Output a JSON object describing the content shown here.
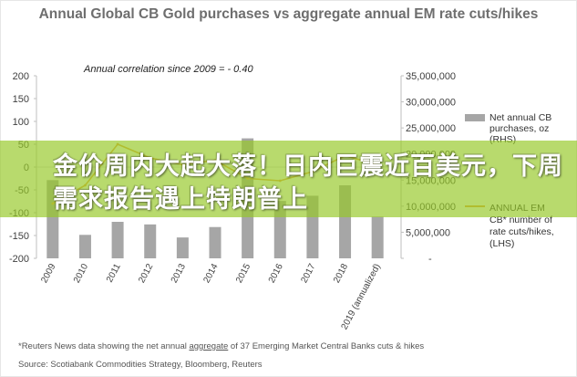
{
  "title": "Annual Global CB Gold purchases vs aggregate annual EM rate cuts/hikes",
  "annotation": "Annual correlation since 2009 =  - 0.40",
  "headline": "金价周内大起大落！日内巨震近百美元，下周需求报告遇上特朗普上",
  "footnote": {
    "pre": "*Reuters News data showing the net annual ",
    "underlined": "aggregate",
    "post": " of 37 Emerging Market Central Banks cuts & hikes"
  },
  "source": "Source:  Scotiabank Commodities Strategy, Bloomberg, Reuters",
  "chart_data": {
    "type": "bar",
    "categories": [
      "2009",
      "2010",
      "2011",
      "2012",
      "2013",
      "2014",
      "2015",
      "2016",
      "2017",
      "2018",
      "2019 (annualized)"
    ],
    "series": [
      {
        "name": "Net annual CB purchases, oz (RHS)",
        "type": "bar",
        "axis": "right",
        "color": "#a6a6a6",
        "values": [
          15000000,
          4500000,
          7000000,
          6500000,
          4000000,
          6000000,
          23000000,
          11000000,
          12000000,
          14000000,
          8000000
        ]
      },
      {
        "name": "ANNUAL EM CB* number of rate cuts/hikes, (LHS)",
        "type": "line",
        "axis": "left",
        "color": "#e8a640",
        "values": [
          -80,
          -40,
          50,
          20,
          5,
          15,
          -25,
          -30,
          -10,
          25,
          5
        ]
      }
    ],
    "left_axis": {
      "min": -200,
      "max": 200,
      "step": 50,
      "ticks": [
        "200",
        "150",
        "100",
        "50",
        "0",
        "-50",
        "-100",
        "-150",
        "-200"
      ]
    },
    "right_axis": {
      "min": 0,
      "max": 35000000,
      "step": 5000000,
      "ticks": [
        "35,000,000",
        "30,000,000",
        "25,000,000",
        "20,000,000",
        "15,000,000",
        "10,000,000",
        "5,000,000",
        "-"
      ]
    },
    "legend": [
      {
        "label_lines": [
          "Net annual CB",
          "purchases, oz",
          "(RHS)"
        ],
        "color": "#a6a6a6",
        "kind": "bar"
      },
      {
        "label_lines": [
          "ANNUAL EM",
          "CB* number of",
          "rate cuts/hikes,",
          "(LHS)"
        ],
        "color": "#e8a640",
        "kind": "line"
      }
    ],
    "legend_position": "right",
    "grid": false
  }
}
